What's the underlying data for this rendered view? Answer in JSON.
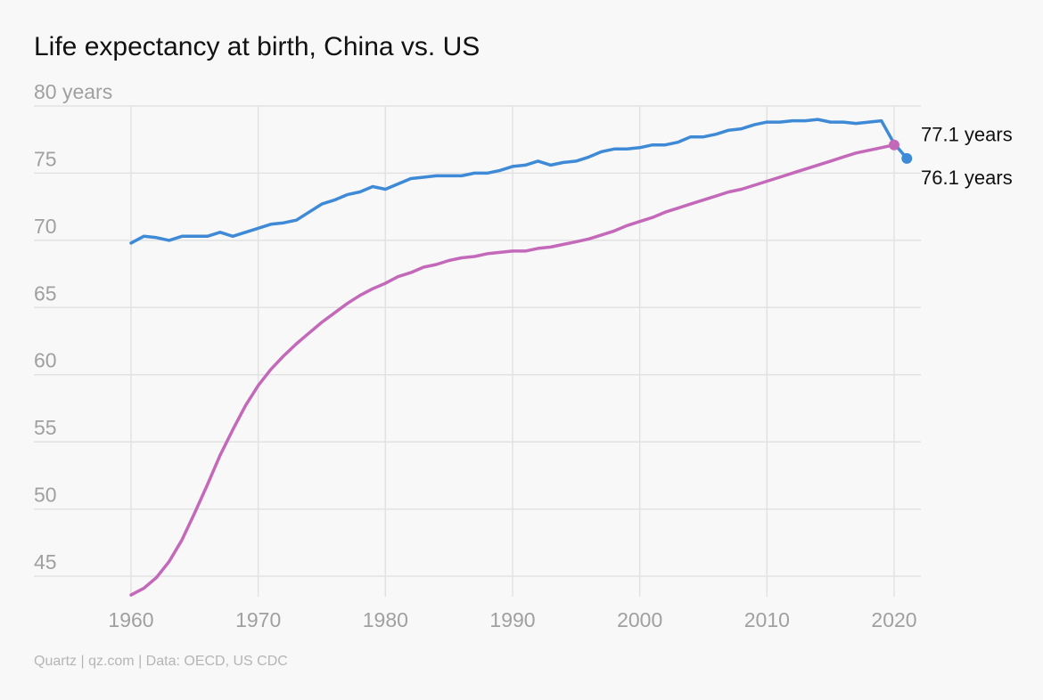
{
  "chart_data": {
    "type": "line",
    "title": "Life expectancy at birth, China vs. US",
    "ylabel": "",
    "xlabel": "",
    "xlim": [
      1960,
      2021
    ],
    "ylim": [
      43.5,
      80
    ],
    "grid": true,
    "x_gridlines": [
      1960,
      1970,
      1980,
      1990,
      2000,
      2010,
      2020
    ],
    "y_ticks": [
      {
        "value": 80,
        "label": "80 years"
      },
      {
        "value": 75,
        "label": "75"
      },
      {
        "value": 70,
        "label": "70"
      },
      {
        "value": 65,
        "label": "65"
      },
      {
        "value": 60,
        "label": "60"
      },
      {
        "value": 55,
        "label": "55"
      },
      {
        "value": 50,
        "label": "50"
      },
      {
        "value": 45,
        "label": "45"
      }
    ],
    "x_ticks": [
      {
        "value": 1960,
        "label": "1960"
      },
      {
        "value": 1970,
        "label": "1970"
      },
      {
        "value": 1980,
        "label": "1980"
      },
      {
        "value": 1990,
        "label": "1990"
      },
      {
        "value": 2000,
        "label": "2000"
      },
      {
        "value": 2010,
        "label": "2010"
      },
      {
        "value": 2020,
        "label": "2020"
      }
    ],
    "series": [
      {
        "color": "#3f8ad6",
        "x": [
          1960,
          1961,
          1962,
          1963,
          1964,
          1965,
          1966,
          1967,
          1968,
          1969,
          1970,
          1971,
          1972,
          1973,
          1974,
          1975,
          1976,
          1977,
          1978,
          1979,
          1980,
          1981,
          1982,
          1983,
          1984,
          1985,
          1986,
          1987,
          1988,
          1989,
          1990,
          1991,
          1992,
          1993,
          1994,
          1995,
          1996,
          1997,
          1998,
          1999,
          2000,
          2001,
          2002,
          2003,
          2004,
          2005,
          2006,
          2007,
          2008,
          2009,
          2010,
          2011,
          2012,
          2013,
          2014,
          2015,
          2016,
          2017,
          2018,
          2019,
          2020,
          2021
        ],
        "values": [
          69.8,
          70.3,
          70.2,
          70.0,
          70.3,
          70.3,
          70.3,
          70.6,
          70.3,
          70.6,
          70.9,
          71.2,
          71.3,
          71.5,
          72.1,
          72.7,
          73.0,
          73.4,
          73.6,
          74.0,
          73.8,
          74.2,
          74.6,
          74.7,
          74.8,
          74.8,
          74.8,
          75.0,
          75.0,
          75.2,
          75.5,
          75.6,
          75.9,
          75.6,
          75.8,
          75.9,
          76.2,
          76.6,
          76.8,
          76.8,
          76.9,
          77.1,
          77.1,
          77.3,
          77.7,
          77.7,
          77.9,
          78.2,
          78.3,
          78.6,
          78.8,
          78.8,
          78.9,
          78.9,
          79.0,
          78.8,
          78.8,
          78.7,
          78.8,
          78.9,
          77.2,
          76.1
        ],
        "end_label": "76.1 years"
      },
      {
        "color": "#c468ba",
        "x": [
          1960,
          1961,
          1962,
          1963,
          1964,
          1965,
          1966,
          1967,
          1968,
          1969,
          1970,
          1971,
          1972,
          1973,
          1974,
          1975,
          1976,
          1977,
          1978,
          1979,
          1980,
          1981,
          1982,
          1983,
          1984,
          1985,
          1986,
          1987,
          1988,
          1989,
          1990,
          1991,
          1992,
          1993,
          1994,
          1995,
          1996,
          1997,
          1998,
          1999,
          2000,
          2001,
          2002,
          2003,
          2004,
          2005,
          2006,
          2007,
          2008,
          2009,
          2010,
          2011,
          2012,
          2013,
          2014,
          2015,
          2016,
          2017,
          2018,
          2019,
          2020
        ],
        "values": [
          43.6,
          44.1,
          44.9,
          46.1,
          47.7,
          49.7,
          51.8,
          54.0,
          55.9,
          57.7,
          59.2,
          60.4,
          61.4,
          62.3,
          63.1,
          63.9,
          64.6,
          65.3,
          65.9,
          66.4,
          66.8,
          67.3,
          67.6,
          68.0,
          68.2,
          68.5,
          68.7,
          68.8,
          69.0,
          69.1,
          69.2,
          69.2,
          69.4,
          69.5,
          69.7,
          69.9,
          70.1,
          70.4,
          70.7,
          71.1,
          71.4,
          71.7,
          72.1,
          72.4,
          72.7,
          73.0,
          73.3,
          73.6,
          73.8,
          74.1,
          74.4,
          74.7,
          75.0,
          75.3,
          75.6,
          75.9,
          76.2,
          76.5,
          76.7,
          76.9,
          77.1
        ],
        "end_label": "77.1 years"
      }
    ],
    "source": "Quartz | qz.com | Data: OECD, US CDC"
  }
}
